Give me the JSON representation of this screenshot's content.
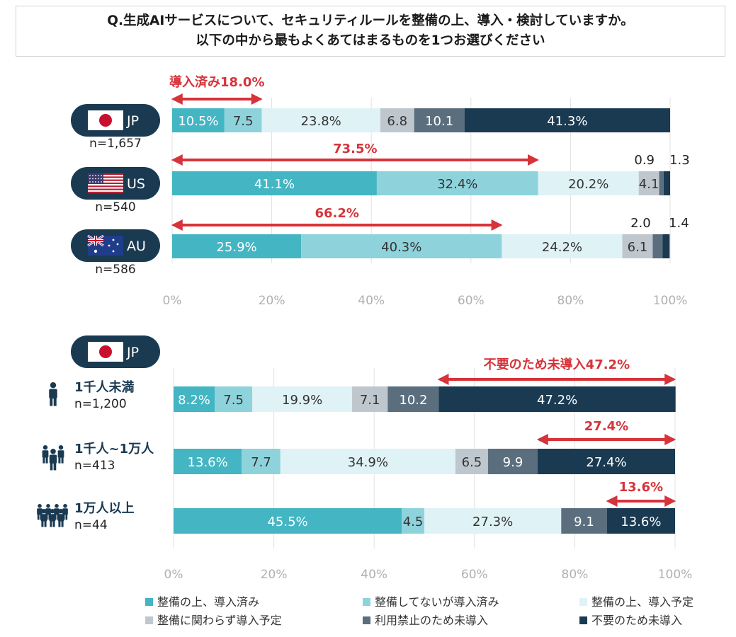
{
  "title": {
    "line1": "Q.生成AIサービスについて、セキュリティルールを整備の上、導入・検討していますか。",
    "line2": "以下の中から最もよくあてはまるものを1つお選びください"
  },
  "colors": {
    "c1": "#43b5c3",
    "c2": "#8ed3dc",
    "c3": "#dff2f6",
    "c4": "#bfc7ce",
    "c5": "#5a6e7e",
    "c6": "#1a3a52",
    "arrow": "#d6333a",
    "pill": "#1a3a52"
  },
  "legend": [
    "整備の上、導入済み",
    "整備してないが導入済み",
    "整備の上、導入予定",
    "整備に関わらず導入予定",
    "利用禁止のため未導入",
    "不要のため未導入"
  ],
  "chart_data": [
    {
      "type": "bar",
      "orientation": "horizontal-stacked",
      "xlim": [
        0,
        100
      ],
      "x_ticks": [
        "0%",
        "20%",
        "40%",
        "60%",
        "80%",
        "100%"
      ],
      "categories": [
        {
          "label": "JP",
          "n": "n=1,657",
          "flag": "japan-flag"
        },
        {
          "label": "US",
          "n": "n=540",
          "flag": "us-flag"
        },
        {
          "label": "AU",
          "n": "n=586",
          "flag": "au-flag"
        }
      ],
      "series": [
        {
          "name": "整備の上、導入済み",
          "values": [
            10.5,
            41.1,
            25.9
          ],
          "labels": [
            "10.5%",
            "41.1%",
            "25.9%"
          ]
        },
        {
          "name": "整備してないが導入済み",
          "values": [
            7.5,
            32.4,
            40.3
          ],
          "labels": [
            "7.5",
            "32.4%",
            "40.3%"
          ]
        },
        {
          "name": "整備の上、導入予定",
          "values": [
            23.8,
            20.2,
            24.2
          ],
          "labels": [
            "23.8%",
            "20.2%",
            "24.2%"
          ]
        },
        {
          "name": "整備に関わらず導入予定",
          "values": [
            6.8,
            4.1,
            6.1
          ],
          "labels": [
            "6.8",
            "4.1",
            "6.1"
          ]
        },
        {
          "name": "利用禁止のため未導入",
          "values": [
            10.1,
            0.9,
            2.0
          ],
          "labels": [
            "10.1",
            "0.9",
            "2.0"
          ]
        },
        {
          "name": "不要のため未導入",
          "values": [
            41.3,
            1.3,
            1.4
          ],
          "labels": [
            "41.3%",
            "1.3",
            "1.4"
          ]
        }
      ],
      "annotations": [
        {
          "text": "導入済み18.0%",
          "from": 0,
          "to": 18.0
        },
        {
          "text": "73.5%",
          "from": 0,
          "to": 73.5
        },
        {
          "text": "66.2%",
          "from": 0,
          "to": 66.2
        }
      ]
    },
    {
      "type": "bar",
      "orientation": "horizontal-stacked",
      "xlim": [
        0,
        100
      ],
      "x_ticks": [
        "0%",
        "20%",
        "40%",
        "60%",
        "80%",
        "100%"
      ],
      "group_label": "JP",
      "categories": [
        {
          "label": "1千人未満",
          "n": "n=1,200"
        },
        {
          "label": "1千人~1万人",
          "n": "n=413"
        },
        {
          "label": "1万人以上",
          "n": "n=44"
        }
      ],
      "series": [
        {
          "name": "整備の上、導入済み",
          "values": [
            8.2,
            13.6,
            45.5
          ],
          "labels": [
            "8.2%",
            "13.6%",
            "45.5%"
          ]
        },
        {
          "name": "整備してないが導入済み",
          "values": [
            7.5,
            7.7,
            4.5
          ],
          "labels": [
            "7.5",
            "7.7",
            "4.5"
          ]
        },
        {
          "name": "整備の上、導入予定",
          "values": [
            19.9,
            34.9,
            27.3
          ],
          "labels": [
            "19.9%",
            "34.9%",
            "27.3%"
          ]
        },
        {
          "name": "整備に関わらず導入予定",
          "values": [
            7.1,
            6.5,
            0
          ],
          "labels": [
            "7.1",
            "6.5",
            ""
          ]
        },
        {
          "name": "利用禁止のため未導入",
          "values": [
            10.2,
            9.9,
            9.1
          ],
          "labels": [
            "10.2",
            "9.9",
            "9.1"
          ]
        },
        {
          "name": "不要のため未導入",
          "values": [
            47.2,
            27.4,
            13.6
          ],
          "labels": [
            "47.2%",
            "27.4%",
            "13.6%"
          ]
        }
      ],
      "annotations": [
        {
          "text": "不要のため未導入47.2%",
          "from": 52.8,
          "to": 100
        },
        {
          "text": "27.4%",
          "from": 72.6,
          "to": 100
        },
        {
          "text": "13.6%",
          "from": 86.4,
          "to": 100
        }
      ]
    }
  ]
}
